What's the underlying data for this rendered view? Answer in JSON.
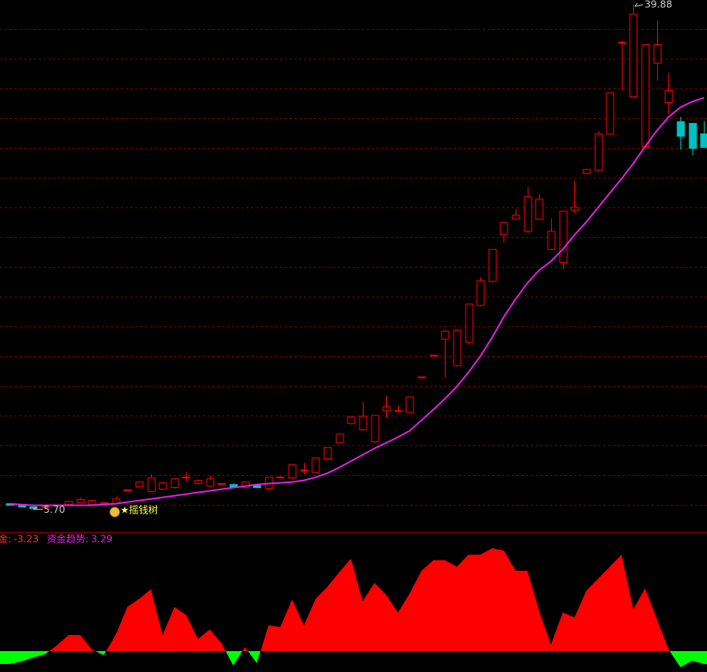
{
  "chart_data": [
    {
      "type": "candlestick",
      "up_color": "#ff0000",
      "down_color": "#00c0c0",
      "grid": true,
      "grid_color": "#7a0000",
      "ylim": [
        4.1,
        40.2
      ],
      "open": [
        6.03,
        5.92,
        5.81,
        5.81,
        5.92,
        5.97,
        6.08,
        5.97,
        6.08,
        6.03,
        6.95,
        7.17,
        6.84,
        7.01,
        7.12,
        7.8,
        7.39,
        7.22,
        7.37,
        7.33,
        7.12,
        7.28,
        7.06,
        7.8,
        7.77,
        8.29,
        8.15,
        9.08,
        10.16,
        11.47,
        11.04,
        10.22,
        12.34,
        12.29,
        12.23,
        14.6,
        16.08,
        17.19,
        15.39,
        16.97,
        19.47,
        21.11,
        24.29,
        25.33,
        24.51,
        25.33,
        23.28,
        22.39,
        25.93,
        28.43,
        28.65,
        31.1,
        37.3,
        33.63,
        30.25,
        35.91,
        33.25,
        31.94,
        31.83,
        31.12
      ],
      "high": [
        6.08,
        5.97,
        5.86,
        5.86,
        5.97,
        6.24,
        6.46,
        6.3,
        6.14,
        6.52,
        6.97,
        7.55,
        8.04,
        7.5,
        7.77,
        8.2,
        7.66,
        7.93,
        7.44,
        7.39,
        7.55,
        7.33,
        7.82,
        7.9,
        8.69,
        8.8,
        9.13,
        9.84,
        10.76,
        11.96,
        12.94,
        12.02,
        13.38,
        12.67,
        13.27,
        14.66,
        16.12,
        17.84,
        17.84,
        19.58,
        21.38,
        23.28,
        25.16,
        26.03,
        27.5,
        27.07,
        25.38,
        25.87,
        27.94,
        28.75,
        31.31,
        33.9,
        37.44,
        39.88,
        37.17,
        38.8,
        35.26,
        32.27,
        31.88,
        31.99
      ],
      "low": [
        5.92,
        5.81,
        5.7,
        5.75,
        5.86,
        5.92,
        6.03,
        5.92,
        6.03,
        5.97,
        6.93,
        7.12,
        6.79,
        6.95,
        7.06,
        7.5,
        7.33,
        7.17,
        7.33,
        7.17,
        7.06,
        7.12,
        6.9,
        7.75,
        7.71,
        8.04,
        8.1,
        9.02,
        10.1,
        11.42,
        10.98,
        10.16,
        11.85,
        12.23,
        12.18,
        14.57,
        16.06,
        14.57,
        15.33,
        16.91,
        19.42,
        21.05,
        23.75,
        25.28,
        24.35,
        25.28,
        23.22,
        21.95,
        25.76,
        28.38,
        28.6,
        31.05,
        34.06,
        33.58,
        30.2,
        34.72,
        32.48,
        30.03,
        29.65,
        30.14
      ],
      "close": [
        5.92,
        5.81,
        5.7,
        5.83,
        5.94,
        6.19,
        6.3,
        6.24,
        6.1,
        6.35,
        6.97,
        7.5,
        7.77,
        7.44,
        7.71,
        7.84,
        7.61,
        7.71,
        7.39,
        7.12,
        7.5,
        7.12,
        7.82,
        7.84,
        8.69,
        8.31,
        9.13,
        9.84,
        10.76,
        11.91,
        11.96,
        12.02,
        12.61,
        12.34,
        13.27,
        14.63,
        16.1,
        17.73,
        17.79,
        19.58,
        21.16,
        23.28,
        25.11,
        25.6,
        26.85,
        26.69,
        24.51,
        25.87,
        26.14,
        28.7,
        31.1,
        33.9,
        37.33,
        39.23,
        37.17,
        37.17,
        34.06,
        30.96,
        30.14,
        30.2
      ],
      "ma": {
        "color": "#e020e0",
        "values": [
          6.03,
          5.97,
          5.92,
          5.92,
          5.92,
          5.92,
          5.92,
          5.92,
          5.97,
          6.03,
          6.14,
          6.24,
          6.35,
          6.46,
          6.57,
          6.68,
          6.79,
          6.9,
          7.01,
          7.12,
          7.22,
          7.33,
          7.39,
          7.44,
          7.5,
          7.61,
          7.82,
          8.1,
          8.48,
          8.91,
          9.35,
          9.78,
          10.16,
          10.55,
          10.98,
          11.69,
          12.4,
          13.16,
          13.97,
          14.95,
          16.04,
          17.3,
          18.71,
          19.91,
          21.0,
          21.87,
          22.47,
          23.28,
          24.26,
          25.14,
          26.12,
          27.1,
          28.07,
          29.11,
          30.25,
          31.34,
          32.27,
          32.92,
          33.3,
          33.57
        ]
      },
      "high_label": 39.88,
      "low_label": {
        "value": 5.7,
        "label": "5.70"
      },
      "signal": "★摇钱树"
    },
    {
      "type": "area",
      "pos_color": "#ff0000",
      "neg_color": "#00ff00",
      "ylim": [
        -5.2,
        29.4
      ],
      "values": [
        -3.2,
        -2.6,
        -1.6,
        -0.8,
        1.4,
        4.0,
        4.0,
        0.4,
        -1.0,
        4.0,
        11.0,
        13.0,
        15.4,
        4.0,
        11.0,
        9.0,
        3.0,
        5.4,
        2.0,
        -3.6,
        1.0,
        -3.0,
        6.4,
        6.0,
        12.8,
        6.4,
        13.0,
        16.0,
        19.6,
        23.0,
        12.4,
        17.0,
        14.0,
        9.6,
        14.4,
        20.0,
        22.6,
        22.6,
        21.0,
        24.0,
        24.0,
        25.6,
        25.0,
        20.0,
        20.0,
        10.0,
        1.6,
        9.6,
        8.4,
        15.0,
        18.0,
        21.0,
        24.0,
        10.4,
        15.6,
        8.0,
        0.4,
        -4.0,
        -2.4,
        -3.23
      ],
      "readouts": [
        {
          "label": "金:",
          "value": -3.23,
          "color": "#ff3030"
        },
        {
          "label": "资金趋势:",
          "value": 3.29,
          "color": "#e020e0"
        }
      ]
    }
  ]
}
